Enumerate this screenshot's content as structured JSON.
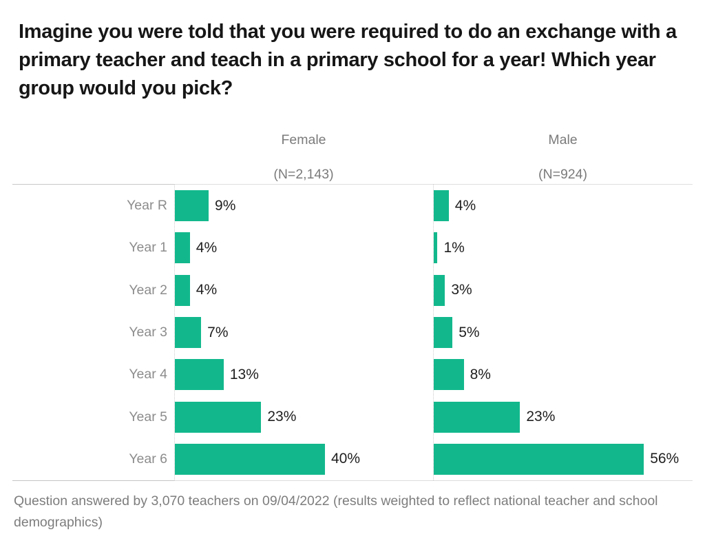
{
  "title": "Imagine you were told that you were required to do an exchange with a primary teacher and teach in a primary school for a year! Which year group would you pick?",
  "footer": "Question answered by 3,070 teachers on 09/04/2022 (results weighted to reflect national teacher and school demographics)",
  "colors": {
    "bar": "#12b88c",
    "title_text": "#161616",
    "secondary_text": "#7d7d7d",
    "category_text": "#8c8c8c",
    "value_text": "#1f1f1f",
    "grid_line": "#d4d4d4",
    "axis_dotted": "#cccccc"
  },
  "chart_data": {
    "type": "bar",
    "orientation": "horizontal",
    "title": "Imagine you were told that you were required to do an exchange with a primary teacher and teach in a primary school for a year! Which year group would you pick?",
    "categories": [
      "Year R",
      "Year 1",
      "Year 2",
      "Year 3",
      "Year 4",
      "Year 5",
      "Year 6"
    ],
    "series": [
      {
        "name": "Female",
        "subtitle": "(N=2,143)",
        "values": [
          9,
          4,
          4,
          7,
          13,
          23,
          40
        ],
        "labels": [
          "9%",
          "4%",
          "4%",
          "7%",
          "13%",
          "23%",
          "40%"
        ]
      },
      {
        "name": "Male",
        "subtitle": "(N=924)",
        "values": [
          4,
          1,
          3,
          5,
          8,
          23,
          56
        ],
        "labels": [
          "4%",
          "1%",
          "3%",
          "5%",
          "8%",
          "23%",
          "56%"
        ]
      }
    ],
    "value_suffix": "%",
    "xlim": [
      0,
      60
    ],
    "grid": "off",
    "legend_position": "column-headers",
    "note": "Question answered by 3,070 teachers on 09/04/2022 (results weighted to reflect national teacher and school demographics)"
  }
}
